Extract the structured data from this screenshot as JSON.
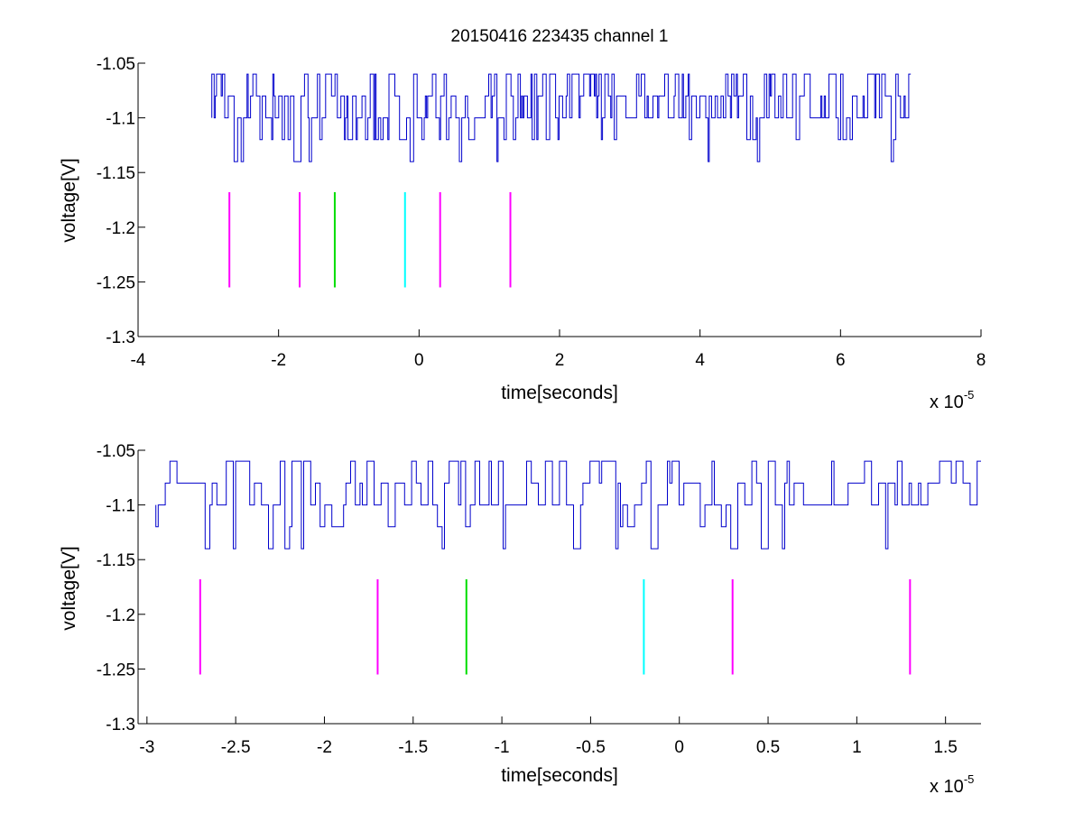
{
  "title": "20150416 223435 channel 1",
  "colors": {
    "signal": "#0000cc",
    "magenta": "#ff00ff",
    "green": "#00dd00",
    "cyan": "#00ffff",
    "axes": "#000000"
  },
  "chart_data": [
    {
      "type": "line",
      "xlabel": "time[seconds]",
      "ylabel": "voltage[V]",
      "x_multiplier": "x 10",
      "x_multiplier_exp": "-5",
      "xlim": [
        -4,
        8
      ],
      "ylim": [
        -1.3,
        -1.05
      ],
      "xticks": [
        "-4",
        "-2",
        "0",
        "2",
        "4",
        "6",
        "8"
      ],
      "xtick_values": [
        -4,
        -2,
        0,
        2,
        4,
        6,
        8
      ],
      "yticks": [
        "-1.05",
        "-1.1",
        "-1.15",
        "-1.2",
        "-1.25",
        "-1.3"
      ],
      "ytick_values": [
        -1.05,
        -1.1,
        -1.15,
        -1.2,
        -1.25,
        -1.3
      ],
      "grid": false,
      "signal": {
        "x_range": [
          -2.95,
          7.0
        ],
        "levels": [
          -1.06,
          -1.08,
          -1.1,
          -1.12,
          -1.14
        ],
        "dominant_level": -1.1
      },
      "markers": [
        {
          "x": -2.7,
          "y_top": -1.168,
          "y_bottom": -1.255,
          "color": "magenta"
        },
        {
          "x": -1.7,
          "y_top": -1.168,
          "y_bottom": -1.255,
          "color": "magenta"
        },
        {
          "x": -1.2,
          "y_top": -1.168,
          "y_bottom": -1.255,
          "color": "green"
        },
        {
          "x": -0.2,
          "y_top": -1.168,
          "y_bottom": -1.255,
          "color": "cyan"
        },
        {
          "x": 0.3,
          "y_top": -1.168,
          "y_bottom": -1.255,
          "color": "magenta"
        },
        {
          "x": 1.3,
          "y_top": -1.168,
          "y_bottom": -1.255,
          "color": "magenta"
        }
      ]
    },
    {
      "type": "line",
      "xlabel": "time[seconds]",
      "ylabel": "voltage[V]",
      "x_multiplier": "x 10",
      "x_multiplier_exp": "-5",
      "xlim": [
        -3.05,
        1.7
      ],
      "ylim": [
        -1.3,
        -1.05
      ],
      "xticks": [
        "-3",
        "-2.5",
        "-2",
        "-1.5",
        "-1",
        "-0.5",
        "0",
        "0.5",
        "1",
        "1.5"
      ],
      "xtick_values": [
        -3,
        -2.5,
        -2,
        -1.5,
        -1,
        -0.5,
        0,
        0.5,
        1,
        1.5
      ],
      "yticks": [
        "-1.05",
        "-1.1",
        "-1.15",
        "-1.2",
        "-1.25",
        "-1.3"
      ],
      "ytick_values": [
        -1.05,
        -1.1,
        -1.15,
        -1.2,
        -1.25,
        -1.3
      ],
      "grid": false,
      "signal": {
        "x_range": [
          -2.95,
          1.7
        ],
        "levels": [
          -1.06,
          -1.08,
          -1.1,
          -1.12,
          -1.14
        ],
        "dominant_level": -1.1
      },
      "markers": [
        {
          "x": -2.7,
          "y_top": -1.168,
          "y_bottom": -1.255,
          "color": "magenta"
        },
        {
          "x": -1.7,
          "y_top": -1.168,
          "y_bottom": -1.255,
          "color": "magenta"
        },
        {
          "x": -1.2,
          "y_top": -1.168,
          "y_bottom": -1.255,
          "color": "green"
        },
        {
          "x": -0.2,
          "y_top": -1.168,
          "y_bottom": -1.255,
          "color": "cyan"
        },
        {
          "x": 0.3,
          "y_top": -1.168,
          "y_bottom": -1.255,
          "color": "magenta"
        },
        {
          "x": 1.3,
          "y_top": -1.168,
          "y_bottom": -1.255,
          "color": "magenta"
        }
      ]
    }
  ]
}
